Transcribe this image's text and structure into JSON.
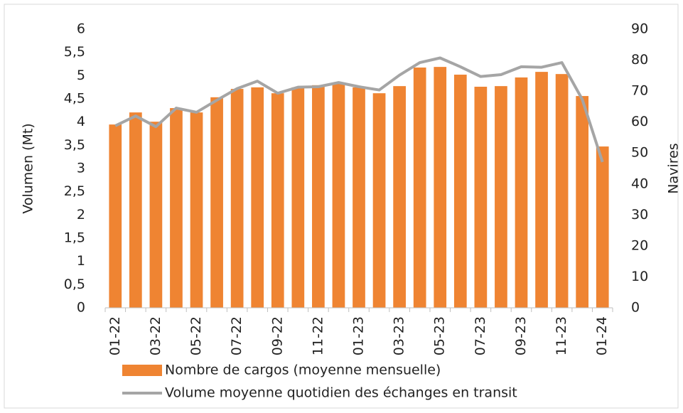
{
  "chart_data": {
    "type": "combo",
    "y_label": "Volumen (Mt)",
    "y2_label": "Navires",
    "categories": [
      "01-22",
      null,
      "03-22",
      null,
      "05-22",
      null,
      "07-22",
      null,
      "09-22",
      null,
      "11-22",
      null,
      "01-23",
      null,
      "03-23",
      null,
      "05-23",
      null,
      "07-23",
      null,
      "09-23",
      null,
      "11-23",
      null,
      "01-24"
    ],
    "series": [
      {
        "name": "Nombre de cargos (moyenne mensuelle)",
        "type": "bar",
        "axis": "y2",
        "color": "#ef8432",
        "values": [
          59.2,
          63.1,
          60.1,
          64.5,
          63.1,
          68.0,
          70.7,
          71.2,
          69.3,
          71.2,
          71.9,
          72.5,
          71.2,
          69.3,
          71.6,
          77.6,
          77.8,
          75.3,
          71.4,
          71.6,
          74.4,
          76.2,
          75.5,
          68.4,
          52.1
        ]
      },
      {
        "name": "Volume moyenne quotidien des échanges en transit",
        "type": "line",
        "axis": "y",
        "color": "#a5a5a5",
        "values": [
          3.92,
          4.13,
          3.9,
          4.3,
          4.21,
          4.47,
          4.72,
          4.88,
          4.62,
          4.75,
          4.76,
          4.85,
          4.76,
          4.69,
          5.01,
          5.28,
          5.38,
          5.19,
          4.98,
          5.02,
          5.19,
          5.18,
          5.28,
          4.49,
          3.14
        ]
      }
    ],
    "ylim": [
      0,
      6
    ],
    "yticks": [
      0,
      {
        "value": 0.5,
        "label": "0,5"
      },
      1,
      {
        "value": 1.5,
        "label": "1,5"
      },
      2,
      {
        "value": 2.5,
        "label": "2,5"
      },
      3,
      {
        "value": 3.5,
        "label": "3,5"
      },
      4,
      {
        "value": 4.5,
        "label": "4,5"
      },
      5,
      {
        "value": 5.5,
        "label": "5,5"
      },
      6
    ],
    "y2lim": [
      0,
      90
    ],
    "y2ticks": [
      0,
      10,
      20,
      30,
      40,
      50,
      60,
      70,
      80,
      90
    ],
    "grid": false,
    "legend": "bottom"
  }
}
